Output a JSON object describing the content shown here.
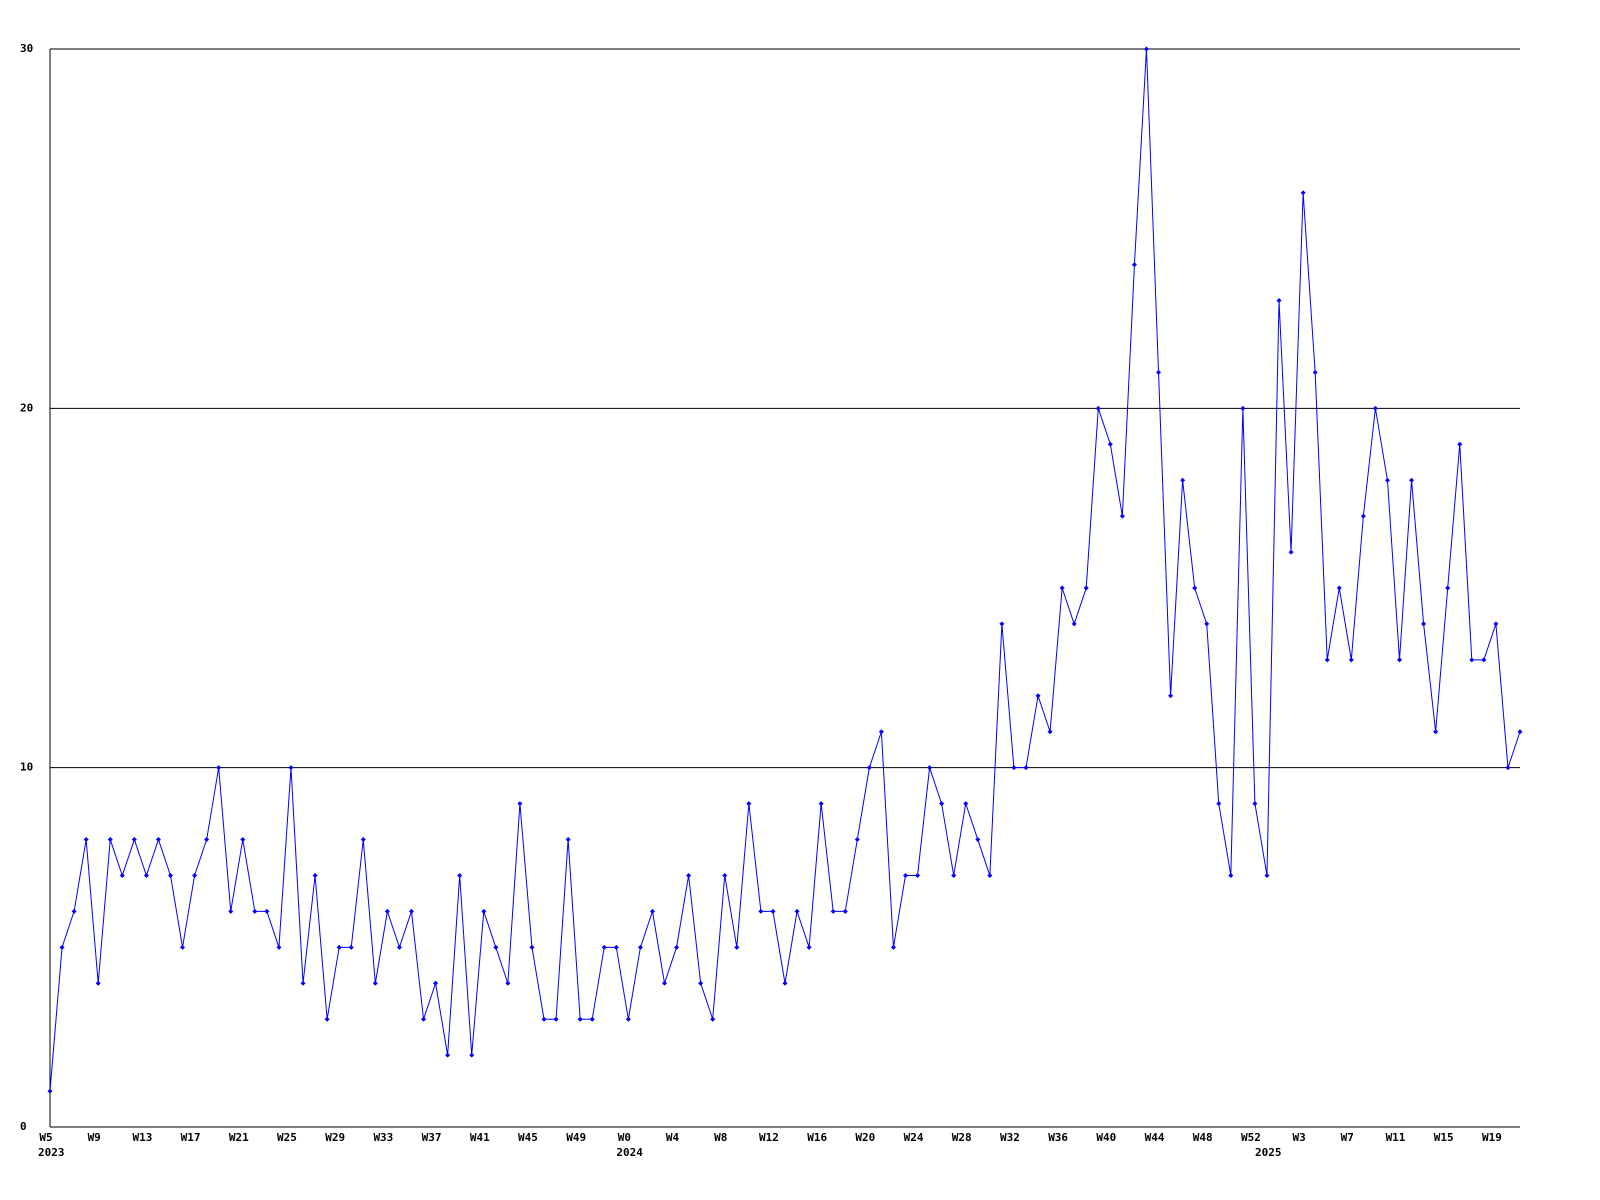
{
  "chart_data": {
    "type": "line",
    "categories": [
      "W5",
      null,
      null,
      null,
      "W9",
      null,
      null,
      null,
      "W13",
      null,
      null,
      null,
      "W17",
      null,
      null,
      null,
      "W21",
      null,
      null,
      null,
      "W25",
      null,
      null,
      null,
      "W29",
      null,
      null,
      null,
      "W33",
      null,
      null,
      null,
      "W37",
      null,
      null,
      null,
      "W41",
      null,
      null,
      null,
      "W45",
      null,
      null,
      null,
      "W49",
      null,
      null,
      null,
      "W0",
      null,
      null,
      null,
      "W4",
      null,
      null,
      null,
      "W8",
      null,
      null,
      null,
      "W12",
      null,
      null,
      null,
      "W16",
      null,
      null,
      null,
      "W20",
      null,
      null,
      null,
      "W24",
      null,
      null,
      null,
      "W28",
      null,
      null,
      null,
      "W32",
      null,
      null,
      null,
      "W36",
      null,
      null,
      null,
      "W40",
      null,
      null,
      null,
      "W44",
      null,
      null,
      null,
      "W48",
      null,
      null,
      null,
      "W52",
      null,
      null,
      null,
      "W3",
      null,
      null,
      null,
      "W7",
      null,
      null,
      null,
      "W11",
      null,
      null,
      null,
      "W15",
      null,
      null,
      null,
      "W19",
      null,
      null
    ],
    "year_labels": [
      "2023",
      null,
      null,
      null,
      null,
      null,
      null,
      null,
      null,
      null,
      null,
      null,
      null,
      null,
      null,
      null,
      null,
      null,
      null,
      null,
      null,
      null,
      null,
      null,
      null,
      null,
      null,
      null,
      null,
      null,
      null,
      null,
      null,
      null,
      null,
      null,
      null,
      null,
      null,
      null,
      null,
      null,
      null,
      null,
      null,
      null,
      null,
      null,
      "2024",
      null,
      null,
      null,
      null,
      null,
      null,
      null,
      null,
      null,
      null,
      null,
      null,
      null,
      null,
      null,
      null,
      null,
      null,
      null,
      null,
      null,
      null,
      null,
      null,
      null,
      null,
      null,
      null,
      null,
      null,
      null,
      null,
      null,
      null,
      null,
      null,
      null,
      null,
      null,
      null,
      null,
      null,
      null,
      null,
      null,
      null,
      null,
      null,
      null,
      null,
      null,
      null,
      "2025",
      null,
      null,
      null,
      null,
      null,
      null,
      null,
      null,
      null,
      null,
      null,
      null,
      null,
      null,
      null,
      null,
      null,
      null,
      null,
      null,
      null
    ],
    "series": [
      {
        "color": "#0000ff",
        "values": [
          1,
          5,
          6,
          8,
          4,
          8,
          7,
          8,
          7,
          8,
          7,
          5,
          7,
          8,
          10,
          6,
          8,
          6,
          6,
          5,
          10,
          4,
          7,
          3,
          5,
          5,
          8,
          4,
          6,
          5,
          6,
          3,
          4,
          2,
          7,
          2,
          6,
          5,
          4,
          9,
          5,
          3,
          3,
          8,
          3,
          3,
          5,
          5,
          3,
          5,
          6,
          4,
          5,
          7,
          4,
          3,
          7,
          5,
          9,
          6,
          6,
          4,
          6,
          5,
          9,
          6,
          6,
          8,
          10,
          11,
          5,
          7,
          7,
          10,
          9,
          7,
          9,
          8,
          7,
          14,
          10,
          10,
          12,
          11,
          15,
          14,
          15,
          20,
          19,
          17,
          24,
          30,
          21,
          12,
          18,
          15,
          14,
          9,
          7,
          20,
          9,
          7,
          23,
          16,
          26,
          21,
          13,
          15,
          13,
          17,
          20,
          18,
          13,
          18,
          14,
          11,
          15,
          19,
          13,
          13,
          14,
          10,
          11
        ]
      }
    ],
    "ylim": [
      0,
      30
    ],
    "yticks": [
      0,
      10,
      20,
      30
    ],
    "grid": true
  }
}
